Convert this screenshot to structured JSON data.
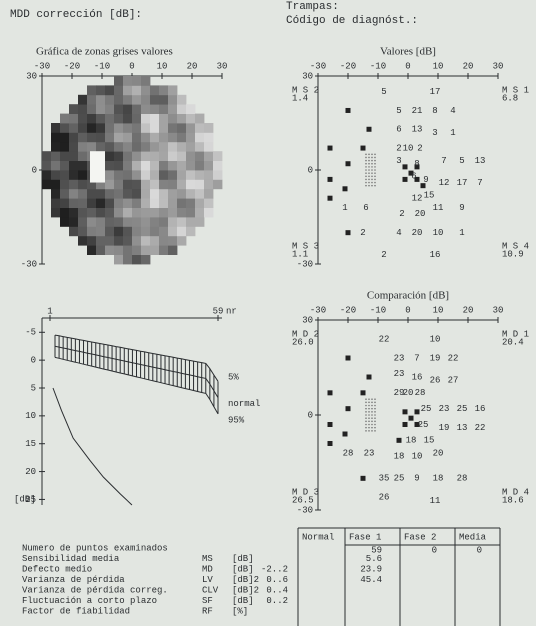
{
  "header": {
    "mdd": "MDD corrección [dB]:",
    "trampas": "Trampas:",
    "codigo": "Código de diagnóst.:"
  },
  "grayscale": {
    "title": "Gráfica de zonas grises valores",
    "xlim": [
      -30,
      30
    ],
    "ylim": [
      -30,
      30
    ],
    "xticks": [
      -30,
      -20,
      -10,
      0,
      10,
      20,
      30
    ],
    "yticks": [
      30,
      0,
      -30
    ]
  },
  "valores": {
    "title": "Valores [dB]",
    "xlim": [
      -30,
      30
    ],
    "ylim": [
      -30,
      30
    ],
    "xticks": [
      -30,
      -20,
      -10,
      0,
      10,
      20,
      30
    ],
    "yticks": [
      30,
      0,
      -30
    ],
    "corners": [
      {
        "name": "M S 2",
        "value": "1.4"
      },
      {
        "name": "M S 1",
        "value": "6.8"
      },
      {
        "name": "M S 3",
        "value": "1.1"
      },
      {
        "name": "M S 4",
        "value": "10.9"
      }
    ],
    "points": [
      {
        "x": -8,
        "y": 25,
        "v": 5
      },
      {
        "x": 9,
        "y": 25,
        "v": 17
      },
      {
        "x": -3,
        "y": 19,
        "v": 5
      },
      {
        "x": 3,
        "y": 19,
        "v": 21
      },
      {
        "x": 9,
        "y": 19,
        "v": 8
      },
      {
        "x": 15,
        "y": 19,
        "v": 4
      },
      {
        "x": -3,
        "y": 13,
        "v": 6
      },
      {
        "x": 3,
        "y": 13,
        "v": 13
      },
      {
        "x": 9,
        "y": 12,
        "v": 3
      },
      {
        "x": 15,
        "y": 12,
        "v": 1
      },
      {
        "x": -3,
        "y": 7,
        "v": 2
      },
      {
        "x": 0,
        "y": 7,
        "v": 10
      },
      {
        "x": 4,
        "y": 7,
        "v": 2
      },
      {
        "x": -3,
        "y": 3,
        "v": 3
      },
      {
        "x": 3,
        "y": 2,
        "v": 8
      },
      {
        "x": 12,
        "y": 3,
        "v": 7
      },
      {
        "x": 18,
        "y": 3,
        "v": 5
      },
      {
        "x": 24,
        "y": 3,
        "v": 13
      },
      {
        "x": 2,
        "y": -2,
        "v": 6
      },
      {
        "x": 6,
        "y": -3,
        "v": 9
      },
      {
        "x": 12,
        "y": -4,
        "v": 12
      },
      {
        "x": 18,
        "y": -4,
        "v": 17
      },
      {
        "x": 24,
        "y": -4,
        "v": 7
      },
      {
        "x": 3,
        "y": -9,
        "v": 12
      },
      {
        "x": 7,
        "y": -8,
        "v": 15
      },
      {
        "x": -21,
        "y": -12,
        "v": 1
      },
      {
        "x": -14,
        "y": -12,
        "v": 6
      },
      {
        "x": -2,
        "y": -14,
        "v": 2
      },
      {
        "x": 4,
        "y": -14,
        "v": 20
      },
      {
        "x": 10,
        "y": -12,
        "v": 11
      },
      {
        "x": 18,
        "y": -12,
        "v": 9
      },
      {
        "x": -15,
        "y": -20,
        "v": 2
      },
      {
        "x": -3,
        "y": -20,
        "v": 4
      },
      {
        "x": 3,
        "y": -20,
        "v": 20
      },
      {
        "x": 10,
        "y": -20,
        "v": 10
      },
      {
        "x": 18,
        "y": -20,
        "v": 1
      },
      {
        "x": -8,
        "y": -27,
        "v": 2
      },
      {
        "x": 9,
        "y": -27,
        "v": 16
      }
    ],
    "squares": [
      [
        -20,
        19
      ],
      [
        -13,
        13
      ],
      [
        -26,
        7
      ],
      [
        -15,
        7
      ],
      [
        -20,
        2
      ],
      [
        -26,
        -3
      ],
      [
        -21,
        -6
      ],
      [
        -26,
        -9
      ],
      [
        -20,
        -20
      ],
      [
        -1,
        1
      ],
      [
        1,
        -1
      ],
      [
        3,
        -3
      ],
      [
        -1,
        -3
      ],
      [
        3,
        1
      ],
      [
        5,
        -5
      ]
    ]
  },
  "comparacion": {
    "title": "Comparación [dB]",
    "xlim": [
      -30,
      30
    ],
    "ylim": [
      -30,
      30
    ],
    "xticks": [
      -30,
      -20,
      -10,
      0,
      10,
      20,
      30
    ],
    "yticks": [
      30,
      0,
      -30
    ],
    "corners": [
      {
        "name": "M D 2",
        "value": "26.0"
      },
      {
        "name": "M D 1",
        "value": "20.4"
      },
      {
        "name": "M D 3",
        "value": "26.5"
      },
      {
        "name": "M D 4",
        "value": "18.6"
      }
    ],
    "points": [
      {
        "x": -8,
        "y": 24,
        "v": 22
      },
      {
        "x": 9,
        "y": 24,
        "v": 10
      },
      {
        "x": -3,
        "y": 18,
        "v": 23
      },
      {
        "x": 3,
        "y": 18,
        "v": 7
      },
      {
        "x": 9,
        "y": 18,
        "v": 19
      },
      {
        "x": 15,
        "y": 18,
        "v": 22
      },
      {
        "x": -3,
        "y": 13,
        "v": 23
      },
      {
        "x": 3,
        "y": 12,
        "v": 16
      },
      {
        "x": 9,
        "y": 11,
        "v": 26
      },
      {
        "x": 15,
        "y": 11,
        "v": 27
      },
      {
        "x": -3,
        "y": 7,
        "v": 29
      },
      {
        "x": 0,
        "y": 7,
        "v": 20
      },
      {
        "x": 4,
        "y": 7,
        "v": 28
      },
      {
        "x": 6,
        "y": 2,
        "v": 25
      },
      {
        "x": 12,
        "y": 2,
        "v": 23
      },
      {
        "x": 18,
        "y": 2,
        "v": 25
      },
      {
        "x": 24,
        "y": 2,
        "v": 16
      },
      {
        "x": 5,
        "y": -3,
        "v": 25
      },
      {
        "x": 12,
        "y": -4,
        "v": 19
      },
      {
        "x": 18,
        "y": -4,
        "v": 13
      },
      {
        "x": 24,
        "y": -4,
        "v": 22
      },
      {
        "x": 1,
        "y": -8,
        "v": 18
      },
      {
        "x": 7,
        "y": -8,
        "v": 15
      },
      {
        "x": -20,
        "y": -12,
        "v": 28
      },
      {
        "x": -13,
        "y": -12,
        "v": 23
      },
      {
        "x": -3,
        "y": -13,
        "v": 18
      },
      {
        "x": 3,
        "y": -13,
        "v": 10
      },
      {
        "x": 10,
        "y": -12,
        "v": 20
      },
      {
        "x": -8,
        "y": -20,
        "v": 35
      },
      {
        "x": -3,
        "y": -20,
        "v": 25
      },
      {
        "x": 3,
        "y": -20,
        "v": 9
      },
      {
        "x": 10,
        "y": -20,
        "v": 18
      },
      {
        "x": 18,
        "y": -20,
        "v": 28
      },
      {
        "x": -8,
        "y": -26,
        "v": 26
      },
      {
        "x": 9,
        "y": -27,
        "v": 11
      }
    ],
    "squares": [
      [
        -20,
        18
      ],
      [
        -13,
        12
      ],
      [
        -26,
        7
      ],
      [
        -15,
        7
      ],
      [
        -20,
        2
      ],
      [
        -26,
        -3
      ],
      [
        -21,
        -6
      ],
      [
        -26,
        -9
      ],
      [
        -15,
        -20
      ],
      [
        -1,
        1
      ],
      [
        1,
        -1
      ],
      [
        3,
        -3
      ],
      [
        -1,
        -3
      ],
      [
        3,
        1
      ],
      [
        -3,
        -8
      ]
    ]
  },
  "curve": {
    "xticks": [
      1,
      59
    ],
    "x_unit": "nr",
    "ylim": [
      -9,
      26
    ],
    "yticks": [
      -5,
      0,
      5,
      10,
      15,
      20,
      25
    ],
    "y_unit": "[dB]",
    "labels": [
      "5%",
      "normal",
      "95%"
    ]
  },
  "table": {
    "headers": [
      "Normal",
      "Fase 1",
      "Fase 2",
      "Media"
    ],
    "rows": [
      {
        "label": "Numero de puntos examinados",
        "abbr": null,
        "unit": null,
        "cells": [
          null,
          59,
          0,
          0
        ]
      },
      {
        "label": "Sensibilidad media",
        "abbr": "MS",
        "unit": "[dB]",
        "cells": [
          null,
          5.6,
          null,
          null
        ]
      },
      {
        "label": "Defecto medio",
        "abbr": "MD",
        "unit": "[dB]",
        "cells": [
          "-2..2",
          23.9,
          null,
          null
        ]
      },
      {
        "label": "Varianza de pérdida",
        "abbr": "LV",
        "unit": "[dB]2",
        "cells": [
          "0..6",
          45.4,
          null,
          null
        ]
      },
      {
        "label": "Varianza de pérdida correg.",
        "abbr": "CLV",
        "unit": "[dB]2",
        "cells": [
          "0..4",
          null,
          null,
          null
        ]
      },
      {
        "label": "Fluctuación a corto plazo",
        "abbr": "SF",
        "unit": "[dB]",
        "cells": [
          "0..2",
          null,
          null,
          null
        ]
      },
      {
        "label": "Factor de fiabilidad",
        "abbr": "RF",
        "unit": "[%]",
        "cells": [
          null,
          null,
          null,
          null
        ]
      }
    ]
  }
}
